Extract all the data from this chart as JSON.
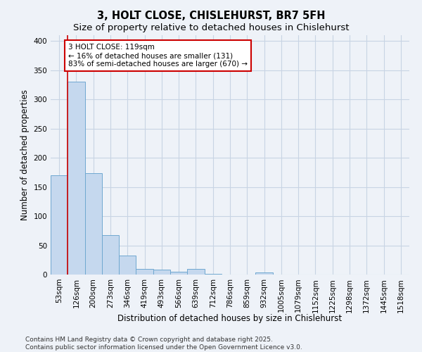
{
  "title": "3, HOLT CLOSE, CHISLEHURST, BR7 5FH",
  "subtitle": "Size of property relative to detached houses in Chislehurst",
  "xlabel": "Distribution of detached houses by size in Chislehurst",
  "ylabel": "Number of detached properties",
  "categories": [
    "53sqm",
    "126sqm",
    "200sqm",
    "273sqm",
    "346sqm",
    "419sqm",
    "493sqm",
    "566sqm",
    "639sqm",
    "712sqm",
    "786sqm",
    "859sqm",
    "932sqm",
    "1005sqm",
    "1079sqm",
    "1152sqm",
    "1225sqm",
    "1298sqm",
    "1372sqm",
    "1445sqm",
    "1518sqm"
  ],
  "values": [
    170,
    330,
    174,
    68,
    33,
    10,
    9,
    5,
    10,
    1,
    0,
    0,
    4,
    0,
    0,
    0,
    0,
    0,
    0,
    0,
    0
  ],
  "bar_color": "#c5d8ee",
  "bar_edge_color": "#6fa8d0",
  "grid_color": "#c8d4e4",
  "background_color": "#eef2f8",
  "property_line_color": "#cc0000",
  "annotation_text": "3 HOLT CLOSE: 119sqm\n← 16% of detached houses are smaller (131)\n83% of semi-detached houses are larger (670) →",
  "annotation_box_color": "#ffffff",
  "annotation_box_edge": "#cc0000",
  "footer_line1": "Contains HM Land Registry data © Crown copyright and database right 2025.",
  "footer_line2": "Contains public sector information licensed under the Open Government Licence v3.0.",
  "ylim": [
    0,
    410
  ],
  "yticks": [
    0,
    50,
    100,
    150,
    200,
    250,
    300,
    350,
    400
  ],
  "title_fontsize": 10.5,
  "subtitle_fontsize": 9.5,
  "xlabel_fontsize": 8.5,
  "ylabel_fontsize": 8.5,
  "tick_fontsize": 7.5,
  "footer_fontsize": 6.5,
  "annotation_fontsize": 7.5
}
